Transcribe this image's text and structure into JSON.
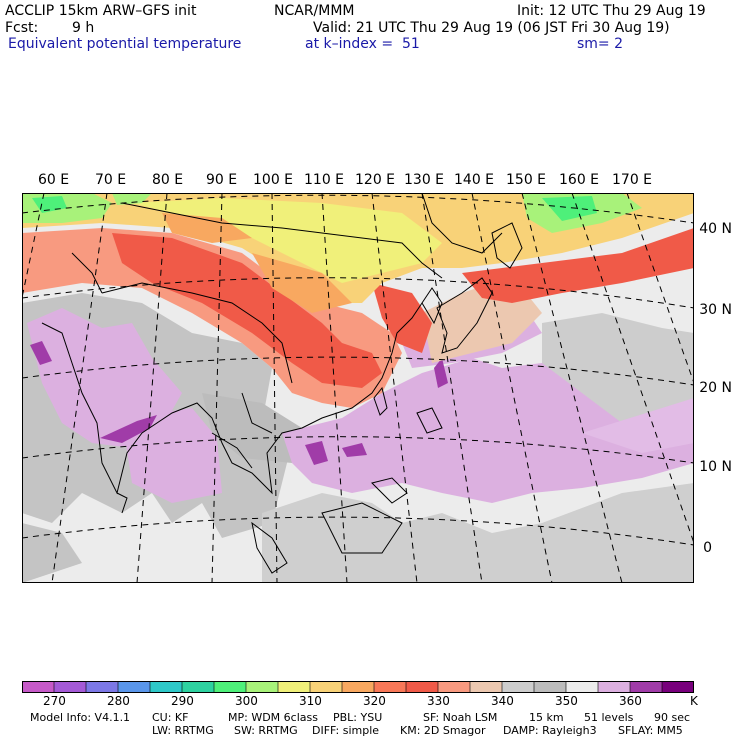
{
  "header": {
    "model": "ACCLIP 15km ARW–GFS init",
    "org": "NCAR/MMM",
    "init": "Init: 12 UTC Thu 29 Aug 19",
    "fcst_label": "Fcst:",
    "fcst_value": "9 h",
    "valid": "Valid: 21 UTC Thu 29 Aug 19 (06 JST Fri 30 Aug 19)",
    "field": "Equivalent potential temperature",
    "level": "at k–index =  51",
    "smooth": "sm= 2"
  },
  "map": {
    "lon_labels": [
      "60 E",
      "70 E",
      "80 E",
      "90 E",
      "100 E",
      "110 E",
      "120 E",
      "130 E",
      "140 E",
      "150 E",
      "160 E",
      "170 E"
    ],
    "lat_labels": [
      "40 N",
      "30 N",
      "20 N",
      "10 N",
      "0"
    ]
  },
  "colorbar": {
    "colors": [
      "#c65ac8",
      "#a45ad6",
      "#7c78e6",
      "#5a96ea",
      "#2ec8c8",
      "#2ed2a0",
      "#4ef07a",
      "#a8f27a",
      "#f0f07a",
      "#f8d278",
      "#f8a860",
      "#f87858",
      "#f05a48",
      "#f89a80",
      "#ecc8b0",
      "#cdcdcd",
      "#bcbcbc",
      "#ececec",
      "#dcb0e0",
      "#a03ca8",
      "#78007c"
    ],
    "labels": [
      "270",
      "280",
      "290",
      "300",
      "310",
      "320",
      "330",
      "340",
      "350",
      "360"
    ],
    "unit": "K"
  },
  "footer": {
    "line1": [
      "Model Info: V4.1.1",
      "CU: KF",
      "MP: WDM 6class",
      "PBL: YSU",
      "SF: Noah LSM",
      "15 km",
      "51 levels",
      "90 sec"
    ],
    "line2": [
      "LW: RRTMG",
      "SW: RRTMG",
      "DIFF: simple",
      "KM: 2D Smagor",
      "DAMP: Rayleigh3",
      "SFLAY: MM5"
    ]
  }
}
